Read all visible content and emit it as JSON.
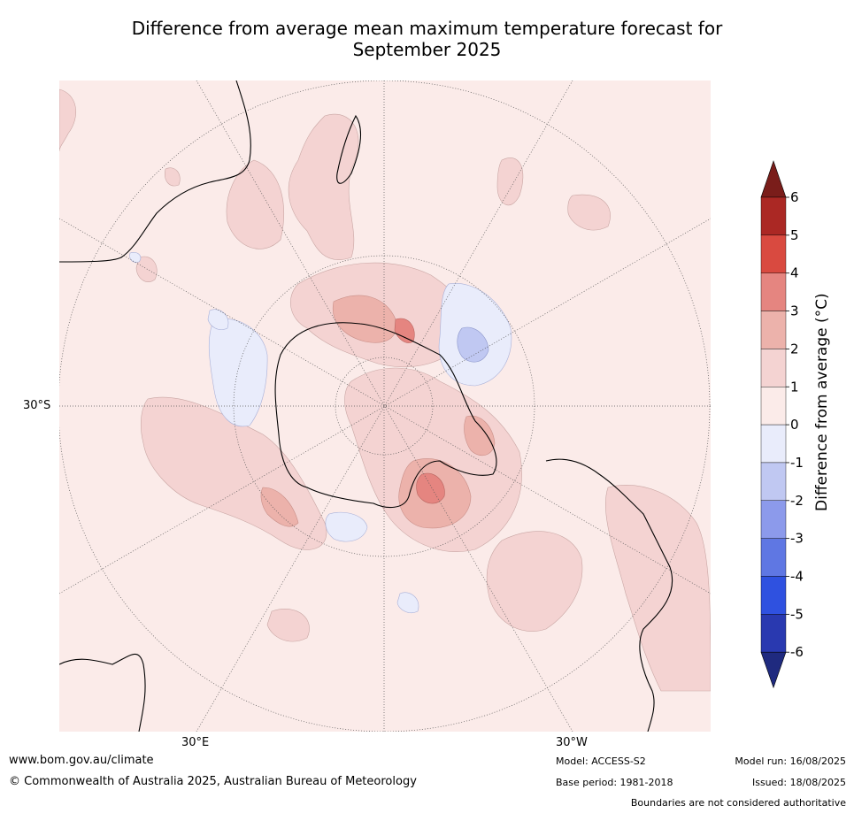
{
  "title_line1": "Difference from average mean maximum temperature forecast for",
  "title_line2": "September 2025",
  "map": {
    "lat_label": "30°S",
    "lon_labels": [
      "30°E",
      "30°W"
    ],
    "colors": {
      "ocean_bg": "#fbebe9",
      "warm_0_1": "#fbebe9",
      "warm_1_2": "#f4d3d2",
      "warm_2_3": "#ecb2ab",
      "warm_3_4": "#e58580",
      "cool_0_1": "#e9ecfb",
      "cool_1_2": "#c0c8f2",
      "coast": "#000000",
      "grid": "#555555"
    }
  },
  "colorbar": {
    "label": "Difference from average (",
    "label_unit": "°C)",
    "ticks": [
      "6",
      "5",
      "4",
      "3",
      "2",
      "1",
      "0",
      "-1",
      "-2",
      "-3",
      "-4",
      "-5",
      "-6"
    ],
    "colors": [
      "#ab2824",
      "#d94a40",
      "#e58580",
      "#ecb2ab",
      "#f4d3d2",
      "#fbebe9",
      "#e9ecfb",
      "#c0c8f2",
      "#8c9aeb",
      "#5f77e3",
      "#2f51e0",
      "#2939b0"
    ],
    "top_triangle": "#7a1d1a",
    "bottom_triangle": "#1f2a7f"
  },
  "footer": {
    "url": "www.bom.gov.au/climate",
    "copyright": "© Commonwealth of Australia 2025, Australian Bureau of Meteorology",
    "model": "Model: ACCESS-S2",
    "base_period": "Base period: 1981-2018",
    "model_run": "Model run: 16/08/2025",
    "issued": "Issued: 18/08/2025",
    "disclaimer": "Boundaries are not considered authoritative"
  }
}
